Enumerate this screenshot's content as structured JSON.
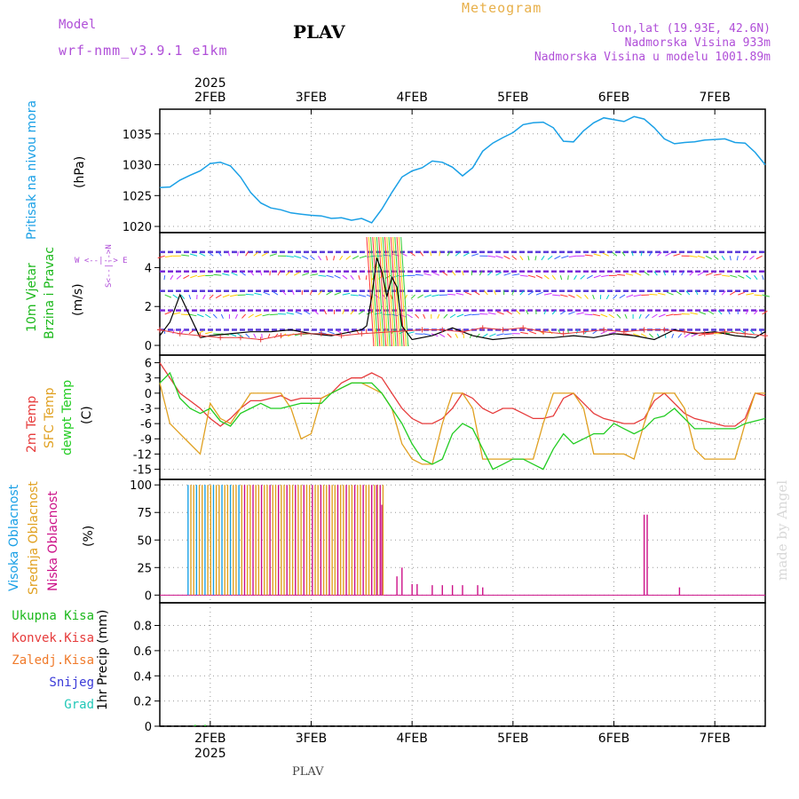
{
  "header": {
    "model_label": "Model",
    "model_name": "wrf-nmm_v3.9.1  e1km",
    "station": "PLAV",
    "meteogram": "Meteogram",
    "lonlat": "lon,lat (19.93E, 42.6N)",
    "elevation": "Nadmorska Visina 933m",
    "model_elevation": "Nadmorska Visina u modelu 1001.89m",
    "footer_station": "PLAV",
    "watermark": "made by Angel",
    "colors": {
      "model": "#b04fd8",
      "meteogram": "#e8b04a",
      "info": "#b04fd8",
      "pressure": "#1aa0e6",
      "wind": "#1cb81c",
      "temp": "#e63b3b",
      "sfc": "#e0a020",
      "dew": "#22cc22",
      "high": "#1aa0e6",
      "mid": "#e0a020",
      "low": "#cc1188",
      "watermark": "#d0d0d0"
    }
  },
  "time_axis": {
    "year": "2025",
    "ticks": [
      "2FEB",
      "3FEB",
      "4FEB",
      "5FEB",
      "6FEB",
      "7FEB"
    ],
    "x_range_days": [
      1.5,
      7.5
    ]
  },
  "panels": {
    "pressure": {
      "title": "Pritisak na nivou mora",
      "unit": "(hPa)"
    },
    "wind": {
      "title1": "10m Vjetar",
      "title2": "Brzina i Pravac",
      "unit": "(m/s)",
      "compass": "W  <--|-->  E",
      "compass_v": "S<--|-->N"
    },
    "temp": {
      "t1": "2m Temp",
      "t2": "SFC Temp",
      "t3": "dewpt Temp",
      "unit": "(C)"
    },
    "cloud": {
      "c1": "Visoka Oblacnost",
      "c2": "Srednja Oblacnost",
      "c3": "Niska Oblacnost",
      "unit": "(%)"
    },
    "precip": {
      "axis_label": "1hr Precip (mm)",
      "legend": [
        "Ukupna Kisa",
        "Konvek.Kisa",
        "Zaledj.Kisa",
        "Snijeg",
        "Grad"
      ],
      "legend_colors": [
        "#1cb81c",
        "#e63b3b",
        "#f07a2a",
        "#3a3ad8",
        "#22c8b8"
      ]
    }
  },
  "chart_data": [
    {
      "type": "line",
      "name": "pressure",
      "ylim": [
        1019,
        1039
      ],
      "yticks": [
        1020,
        1025,
        1030,
        1035
      ],
      "x": [
        1.5,
        1.6,
        1.7,
        1.8,
        1.9,
        2.0,
        2.1,
        2.2,
        2.3,
        2.4,
        2.5,
        2.6,
        2.7,
        2.8,
        2.9,
        3.0,
        3.1,
        3.2,
        3.3,
        3.4,
        3.5,
        3.6,
        3.7,
        3.8,
        3.9,
        4.0,
        4.1,
        4.2,
        4.3,
        4.4,
        4.5,
        4.6,
        4.7,
        4.8,
        4.9,
        5.0,
        5.1,
        5.2,
        5.3,
        5.4,
        5.5,
        5.6,
        5.7,
        5.8,
        5.9,
        6.0,
        6.1,
        6.2,
        6.3,
        6.4,
        6.5,
        6.6,
        6.7,
        6.8,
        6.9,
        7.0,
        7.1,
        7.2,
        7.3,
        7.4,
        7.5
      ],
      "y": [
        1026.3,
        1026.4,
        1027.5,
        1028.3,
        1029.0,
        1030.2,
        1030.4,
        1029.8,
        1028.0,
        1025.5,
        1023.8,
        1023.0,
        1022.7,
        1022.2,
        1022.0,
        1021.8,
        1021.7,
        1021.3,
        1021.4,
        1021.0,
        1021.3,
        1020.6,
        1022.8,
        1025.5,
        1028.0,
        1029.0,
        1029.5,
        1030.6,
        1030.4,
        1029.6,
        1028.2,
        1029.5,
        1032.2,
        1033.5,
        1034.4,
        1035.2,
        1036.5,
        1036.8,
        1036.9,
        1036.0,
        1033.8,
        1033.7,
        1035.5,
        1036.8,
        1037.6,
        1037.3,
        1037.0,
        1037.8,
        1037.4,
        1036.0,
        1034.2,
        1033.4,
        1033.6,
        1033.7,
        1034.0,
        1034.1,
        1034.2,
        1033.6,
        1033.5,
        1032.0,
        1030.0
      ],
      "color": "#1aa0e6"
    },
    {
      "type": "line",
      "name": "wind",
      "ylim": [
        -0.5,
        5.8
      ],
      "yticks": [
        0,
        2,
        4
      ],
      "series": [
        {
          "x": [
            1.5,
            1.6,
            1.7,
            1.8,
            1.9,
            2.0,
            2.2,
            2.4,
            2.6,
            2.8,
            3.0,
            3.2,
            3.4,
            3.5,
            3.55,
            3.6,
            3.65,
            3.7,
            3.75,
            3.8,
            3.85,
            3.9,
            4.0,
            4.2,
            4.4,
            4.6,
            4.8,
            5.0,
            5.2,
            5.4,
            5.6,
            5.8,
            6.0,
            6.2,
            6.4,
            6.6,
            6.8,
            7.0,
            7.2,
            7.4,
            7.5
          ],
          "y": [
            0.5,
            1.2,
            2.6,
            1.5,
            0.4,
            0.5,
            0.6,
            0.7,
            0.7,
            0.8,
            0.6,
            0.5,
            0.7,
            0.8,
            1.0,
            2.5,
            4.5,
            3.8,
            2.5,
            3.5,
            3.0,
            1.0,
            0.3,
            0.5,
            0.9,
            0.5,
            0.3,
            0.4,
            0.4,
            0.4,
            0.5,
            0.4,
            0.6,
            0.5,
            0.3,
            0.8,
            0.6,
            0.7,
            0.5,
            0.4,
            0.7
          ],
          "color": "#000000"
        },
        {
          "x": [
            1.5,
            1.7,
            1.9,
            2.1,
            2.3,
            2.5,
            2.7,
            2.9,
            3.1,
            3.3,
            3.5,
            4.1,
            4.3,
            4.5,
            4.7,
            4.9,
            5.1,
            5.3,
            5.5,
            5.7,
            5.9,
            6.1,
            6.3,
            6.5,
            6.7,
            6.9,
            7.1,
            7.3,
            7.5
          ],
          "y": [
            0.8,
            0.6,
            0.5,
            0.4,
            0.4,
            0.3,
            0.5,
            0.6,
            0.6,
            0.5,
            0.6,
            0.8,
            0.8,
            0.7,
            0.9,
            0.8,
            0.9,
            0.7,
            0.6,
            0.7,
            0.8,
            0.7,
            0.8,
            0.8,
            0.7,
            0.6,
            0.7,
            0.6,
            0.5
          ],
          "color": "#e63b3b"
        }
      ]
    },
    {
      "type": "line",
      "name": "temperature",
      "ylim": [
        -17,
        7.5
      ],
      "yticks": [
        6,
        3,
        0,
        -3,
        -6,
        -9,
        -12,
        -15
      ],
      "x": [
        1.5,
        1.6,
        1.7,
        1.8,
        1.9,
        2.0,
        2.1,
        2.2,
        2.3,
        2.4,
        2.5,
        2.6,
        2.7,
        2.8,
        2.9,
        3.0,
        3.1,
        3.2,
        3.3,
        3.4,
        3.5,
        3.6,
        3.7,
        3.8,
        3.9,
        4.0,
        4.1,
        4.2,
        4.3,
        4.4,
        4.5,
        4.6,
        4.7,
        4.8,
        4.9,
        5.0,
        5.1,
        5.2,
        5.3,
        5.4,
        5.5,
        5.6,
        5.7,
        5.8,
        5.9,
        6.0,
        6.1,
        6.2,
        6.3,
        6.4,
        6.5,
        6.6,
        6.7,
        6.8,
        6.9,
        7.0,
        7.1,
        7.2,
        7.3,
        7.4,
        7.5
      ],
      "series": [
        {
          "color": "#e63b3b",
          "y": [
            6,
            3,
            0,
            -1.5,
            -3,
            -5,
            -6.5,
            -5,
            -3,
            -1.5,
            -1.5,
            -1,
            -0.5,
            -1.5,
            -1,
            -1,
            -1,
            0,
            2,
            3,
            3,
            4,
            3,
            0,
            -3,
            -5,
            -6,
            -6,
            -5,
            -3,
            0,
            -1,
            -3,
            -4,
            -3,
            -3,
            -4,
            -5,
            -5,
            -4.5,
            -1,
            0,
            -2,
            -4,
            -5,
            -5.5,
            -6,
            -6,
            -5,
            -1.5,
            0,
            -2,
            -4,
            -5,
            -5.5,
            -6,
            -6.5,
            -6.5,
            -5,
            0,
            -0.5
          ]
        },
        {
          "color": "#e0a020",
          "y": [
            2,
            -6,
            -8,
            -10,
            -12,
            -2,
            -5,
            -6,
            -3,
            0,
            0,
            0,
            0,
            -3,
            -9,
            -8,
            -1,
            0,
            1,
            2,
            2,
            1,
            0,
            -3,
            -10,
            -13,
            -14,
            -14,
            -6,
            0,
            0,
            -3,
            -13,
            -13,
            -13,
            -13,
            -13,
            -13,
            -6,
            0,
            0,
            0,
            -3,
            -12,
            -12,
            -12,
            -12,
            -13,
            -6,
            0,
            0,
            0,
            -3,
            -11,
            -13,
            -13,
            -13,
            -13,
            -6,
            0,
            0
          ]
        },
        {
          "color": "#22cc22",
          "y": [
            2,
            4,
            -1,
            -3,
            -4,
            -3,
            -5.5,
            -6.5,
            -4,
            -3,
            -2,
            -3,
            -3,
            -2.5,
            -2,
            -2,
            -2,
            0,
            1,
            2,
            2,
            2,
            0,
            -3,
            -6,
            -10,
            -13,
            -14,
            -13,
            -8,
            -6,
            -7,
            -11,
            -15,
            -14,
            -13,
            -13,
            -14,
            -15,
            -11,
            -8,
            -10,
            -9,
            -8,
            -8,
            -6,
            -7,
            -8,
            -7,
            -5,
            -4.5,
            -3,
            -5,
            -7,
            -7,
            -7,
            -7,
            -7,
            -6,
            -5.5,
            -5
          ]
        }
      ]
    },
    {
      "type": "bar",
      "name": "cloud",
      "ylim": [
        -7,
        105
      ],
      "yticks": [
        0,
        25,
        50,
        75,
        100
      ],
      "series": [
        {
          "name": "Visoka Oblacnost",
          "color": "#1aa0e6"
        },
        {
          "name": "Srednja Oblacnost",
          "color": "#e0a020"
        },
        {
          "name": "Niska Oblacnost",
          "color": "#cc1188"
        }
      ],
      "low_bars": {
        "x": [
          3.65,
          3.7,
          3.85,
          3.9,
          4.0,
          4.05,
          4.2,
          4.3,
          4.4,
          4.5,
          4.65,
          4.7,
          6.3,
          6.33,
          6.65
        ],
        "y": [
          100,
          82,
          17,
          25,
          10,
          10,
          9,
          9,
          9,
          9,
          9,
          7,
          73,
          73,
          7
        ]
      }
    },
    {
      "type": "bar",
      "name": "precip",
      "ylim": [
        0,
        0.98
      ],
      "yticks": [
        0,
        0.2,
        0.4,
        0.6,
        0.8
      ],
      "values": [
        0.01,
        0.01
      ],
      "x": [
        1.85,
        1.95
      ]
    }
  ]
}
